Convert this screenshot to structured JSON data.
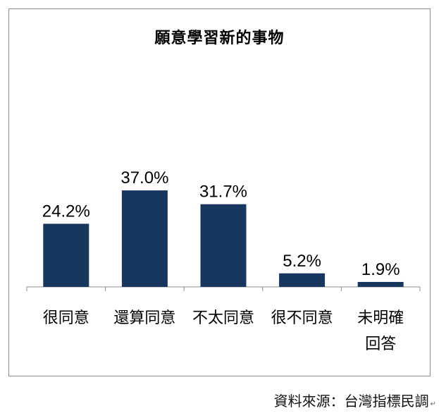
{
  "chart_data": {
    "type": "bar",
    "title": "願意學習新的事物",
    "categories": [
      [
        "很同意"
      ],
      [
        "還算同意"
      ],
      [
        "不太同意"
      ],
      [
        "很不同意"
      ],
      [
        "未明確",
        "回答"
      ]
    ],
    "values": [
      24.2,
      37.0,
      31.7,
      5.2,
      1.9
    ],
    "value_labels": [
      "24.2%",
      "37.0%",
      "31.7%",
      "5.2%",
      "1.9%"
    ],
    "xlabel": "",
    "ylabel": "",
    "ylim": [
      0,
      100
    ],
    "grid": false,
    "legend": "none",
    "bar_color": "#17375e"
  },
  "source": "資料來源：台灣指標民調",
  "source_mark": "↵",
  "colors": {
    "bar": "#17375e",
    "frame": "#8c8c8c",
    "axis": "#8c8c8c"
  }
}
